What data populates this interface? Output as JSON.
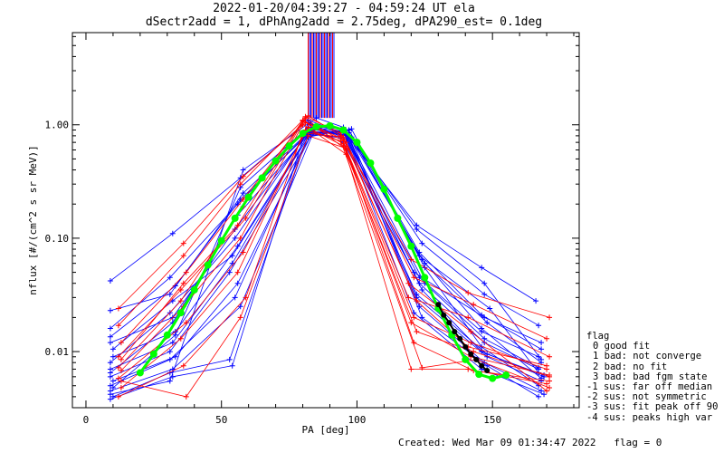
{
  "title_line1": "2022-01-20/04:39:27 - 04:59:24 UT ela",
  "title_line2": "dSectr2add = 1, dPhAng2add = 2.75deg, dPA290_est=   0.1deg",
  "footer": {
    "created": "Created: Wed Mar 09 01:34:47 2022",
    "flag": "flag = 0"
  },
  "legend": {
    "title": "flag",
    "items": [
      "0 good fit",
      "1 bad: not converge",
      "2 bad: no fit",
      "3 bad: bad fgm state",
      "-1 sus: far off median",
      "-2 sus: not symmetric",
      "-3 sus: fit peak off 90",
      "-4 sus: peaks high var"
    ]
  },
  "colors": {
    "trace_blue": "#0000ff",
    "trace_red": "#ff0000",
    "fit_green": "#00ff00",
    "fit_black": "#000000",
    "axis": "#000000"
  },
  "chart_data": {
    "type": "line",
    "xlabel": "PA [deg]",
    "ylabel": "nflux [#/(cm^2 s sr MeV)]",
    "xlim": [
      -5,
      182
    ],
    "ylim": [
      0.0032,
      6.5
    ],
    "yscale": "log",
    "xticks": [
      0,
      50,
      100,
      150
    ],
    "xtick_labels": [
      "0",
      "50",
      "100",
      "150"
    ],
    "yticks": [
      0.01,
      0.1,
      1.0
    ],
    "ytick_labels": [
      "0.01",
      "0.10",
      "1.00"
    ],
    "grid": false,
    "legend_position": "right",
    "series": [
      {
        "color": "blue",
        "x": [
          9,
          32,
          57,
          82,
          96,
          122,
          146,
          166
        ],
        "y": [
          0.042,
          0.11,
          0.34,
          1.1,
          0.82,
          0.13,
          0.055,
          0.028
        ]
      },
      {
        "color": "blue",
        "x": [
          9,
          31,
          58,
          84,
          97,
          124,
          147,
          167
        ],
        "y": [
          0.023,
          0.032,
          0.25,
          0.95,
          0.85,
          0.09,
          0.032,
          0.017
        ]
      },
      {
        "color": "blue",
        "x": [
          9,
          31,
          56,
          83,
          95,
          121,
          147,
          168
        ],
        "y": [
          0.016,
          0.045,
          0.2,
          0.9,
          0.7,
          0.05,
          0.02,
          0.012
        ]
      },
      {
        "color": "blue",
        "x": [
          9,
          32,
          55,
          82,
          96,
          123,
          146,
          167
        ],
        "y": [
          0.012,
          0.02,
          0.12,
          0.85,
          0.75,
          0.045,
          0.015,
          0.009
        ]
      },
      {
        "color": "blue",
        "x": [
          10,
          33,
          56,
          83,
          97,
          125,
          148,
          168
        ],
        "y": [
          0.009,
          0.015,
          0.085,
          0.88,
          0.8,
          0.06,
          0.018,
          0.008
        ]
      },
      {
        "color": "blue",
        "x": [
          9,
          32,
          54,
          82,
          96,
          123,
          147,
          167
        ],
        "y": [
          0.007,
          0.012,
          0.06,
          0.82,
          0.78,
          0.04,
          0.012,
          0.007
        ]
      },
      {
        "color": "blue",
        "x": [
          9,
          31,
          53,
          83,
          95,
          124,
          146,
          169
        ],
        "y": [
          0.006,
          0.01,
          0.05,
          0.8,
          0.9,
          0.035,
          0.01,
          0.006
        ]
      },
      {
        "color": "blue",
        "x": [
          10,
          33,
          56,
          84,
          97,
          122,
          148,
          168
        ],
        "y": [
          0.0055,
          0.009,
          0.04,
          0.9,
          0.85,
          0.03,
          0.009,
          0.0055
        ]
      },
      {
        "color": "blue",
        "x": [
          9,
          31,
          55,
          82,
          98,
          125,
          146,
          167
        ],
        "y": [
          0.005,
          0.0085,
          0.03,
          0.78,
          0.92,
          0.055,
          0.011,
          0.005
        ]
      },
      {
        "color": "blue",
        "x": [
          9,
          32,
          57,
          84,
          96,
          123,
          147,
          168
        ],
        "y": [
          0.0045,
          0.007,
          0.025,
          0.86,
          0.88,
          0.025,
          0.008,
          0.0045
        ]
      },
      {
        "color": "blue",
        "x": [
          10,
          31,
          53,
          83,
          97,
          124,
          148,
          167
        ],
        "y": [
          0.004,
          0.0065,
          0.0085,
          0.95,
          0.8,
          0.02,
          0.0075,
          0.004
        ]
      },
      {
        "color": "blue",
        "x": [
          9,
          32,
          54,
          82,
          96,
          121,
          146,
          169
        ],
        "y": [
          0.0038,
          0.006,
          0.0075,
          1.05,
          0.75,
          0.022,
          0.007,
          0.0042
        ]
      },
      {
        "color": "blue",
        "x": [
          9,
          31,
          58,
          85,
          95,
          122,
          147,
          168
        ],
        "y": [
          0.0042,
          0.0055,
          0.4,
          1.15,
          0.95,
          0.12,
          0.04,
          0.0085
        ]
      },
      {
        "color": "blue",
        "x": [
          10,
          33,
          57,
          83,
          97,
          123,
          149,
          167
        ],
        "y": [
          0.0048,
          0.014,
          0.28,
          1.0,
          0.85,
          0.07,
          0.024,
          0.0065
        ]
      },
      {
        "color": "blue",
        "x": [
          9,
          32,
          56,
          84,
          98,
          124,
          146,
          168
        ],
        "y": [
          0.0065,
          0.018,
          0.16,
          0.92,
          0.78,
          0.065,
          0.016,
          0.0058
        ]
      },
      {
        "color": "blue",
        "x": [
          9,
          31,
          55,
          82,
          96,
          125,
          147,
          167
        ],
        "y": [
          0.008,
          0.022,
          0.1,
          0.87,
          0.82,
          0.04,
          0.013,
          0.0072
        ]
      },
      {
        "color": "blue",
        "x": [
          10,
          32,
          54,
          83,
          95,
          122,
          148,
          169
        ],
        "y": [
          0.0105,
          0.028,
          0.07,
          0.84,
          0.86,
          0.032,
          0.0095,
          0.0062
        ]
      },
      {
        "color": "blue",
        "x": [
          9,
          33,
          57,
          85,
          97,
          123,
          146,
          168
        ],
        "y": [
          0.0135,
          0.038,
          0.22,
          0.97,
          0.9,
          0.075,
          0.021,
          0.0105
        ]
      },
      {
        "color": "red",
        "x": [
          12,
          36,
          58,
          81,
          95,
          120,
          141,
          171
        ],
        "y": [
          0.024,
          0.09,
          0.35,
          1.05,
          0.75,
          0.065,
          0.033,
          0.02
        ]
      },
      {
        "color": "red",
        "x": [
          12,
          36,
          57,
          80,
          96,
          121,
          143,
          170
        ],
        "y": [
          0.017,
          0.07,
          0.3,
          1.1,
          0.7,
          0.045,
          0.026,
          0.013
        ]
      },
      {
        "color": "red",
        "x": [
          13,
          37,
          58,
          82,
          94,
          119,
          141,
          171
        ],
        "y": [
          0.012,
          0.05,
          0.22,
          1.2,
          0.8,
          0.03,
          0.02,
          0.009
        ]
      },
      {
        "color": "red",
        "x": [
          12,
          35,
          59,
          81,
          96,
          121,
          142,
          170
        ],
        "y": [
          0.009,
          0.035,
          0.15,
          1.15,
          0.6,
          0.02,
          0.012,
          0.007
        ]
      },
      {
        "color": "red",
        "x": [
          13,
          36,
          57,
          80,
          95,
          122,
          143,
          171
        ],
        "y": [
          0.0068,
          0.025,
          0.1,
          1.0,
          0.65,
          0.015,
          0.01,
          0.006
        ]
      },
      {
        "color": "red",
        "x": [
          12,
          37,
          58,
          82,
          96,
          120,
          141,
          170
        ],
        "y": [
          0.0058,
          0.018,
          0.075,
          0.95,
          0.55,
          0.007,
          0.007,
          0.0052
        ]
      },
      {
        "color": "red",
        "x": [
          13,
          35,
          56,
          81,
          94,
          124,
          144,
          171
        ],
        "y": [
          0.0048,
          0.013,
          0.05,
          0.9,
          0.72,
          0.0072,
          0.0085,
          0.0048
        ]
      },
      {
        "color": "red",
        "x": [
          12,
          36,
          59,
          80,
          95,
          119,
          142,
          170
        ],
        "y": [
          0.004,
          0.0075,
          0.03,
          0.85,
          0.78,
          0.04,
          0.015,
          0.0045
        ]
      },
      {
        "color": "red",
        "x": [
          13,
          37,
          57,
          82,
          96,
          121,
          143,
          171
        ],
        "y": [
          0.0055,
          0.004,
          0.02,
          0.8,
          0.62,
          0.012,
          0.0068,
          0.0055
        ]
      },
      {
        "color": "red",
        "x": [
          12,
          35,
          58,
          81,
          94,
          122,
          141,
          170
        ],
        "y": [
          0.0072,
          0.028,
          0.19,
          1.18,
          0.85,
          0.028,
          0.011,
          0.0075
        ]
      },
      {
        "color": "red",
        "x": [
          13,
          36,
          56,
          80,
          95,
          120,
          142,
          171
        ],
        "y": [
          0.0085,
          0.04,
          0.13,
          1.08,
          0.68,
          0.018,
          0.009,
          0.0062
        ]
      },
      {
        "color": "green",
        "x": [
          20,
          25,
          30,
          35,
          40,
          45,
          50,
          55,
          60,
          65,
          70,
          75,
          80,
          85,
          90,
          95,
          100,
          105,
          110,
          115,
          120,
          125,
          130,
          135,
          140,
          145,
          150,
          155
        ],
        "y": [
          0.0065,
          0.0095,
          0.014,
          0.022,
          0.035,
          0.058,
          0.095,
          0.15,
          0.23,
          0.34,
          0.48,
          0.65,
          0.84,
          0.96,
          0.98,
          0.9,
          0.7,
          0.46,
          0.27,
          0.15,
          0.085,
          0.045,
          0.024,
          0.014,
          0.0085,
          0.0063,
          0.0058,
          0.0062
        ]
      },
      {
        "color": "black",
        "x": [
          130,
          132,
          134,
          136,
          138,
          140,
          142,
          144,
          146,
          148
        ],
        "y": [
          0.026,
          0.021,
          0.018,
          0.015,
          0.013,
          0.011,
          0.0095,
          0.0085,
          0.0075,
          0.0068
        ]
      }
    ]
  }
}
